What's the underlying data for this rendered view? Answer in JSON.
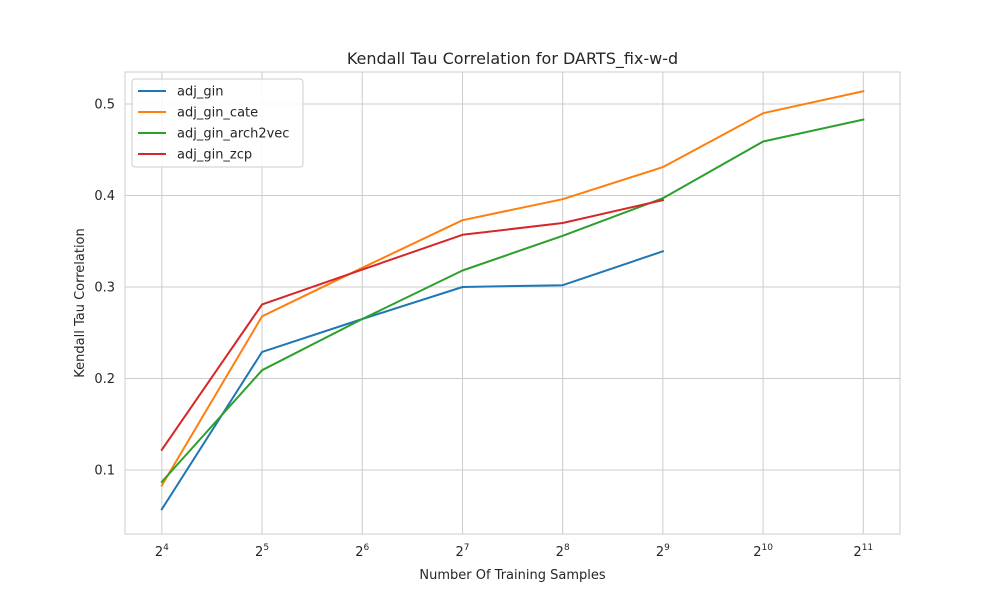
{
  "chart_data": {
    "type": "line",
    "title": "Kendall Tau Correlation for DARTS_fix-w-d",
    "xlabel": "Number Of Training Samples",
    "ylabel": "Kendall Tau Correlation",
    "x_scale": "log2",
    "x_ticks": [
      {
        "base": "2",
        "exp": "4",
        "value": 16
      },
      {
        "base": "2",
        "exp": "5",
        "value": 32
      },
      {
        "base": "2",
        "exp": "6",
        "value": 64
      },
      {
        "base": "2",
        "exp": "7",
        "value": 128
      },
      {
        "base": "2",
        "exp": "8",
        "value": 256
      },
      {
        "base": "2",
        "exp": "9",
        "value": 512
      },
      {
        "base": "2",
        "exp": "10",
        "value": 1024
      },
      {
        "base": "2",
        "exp": "11",
        "value": 2048
      }
    ],
    "xlim": [
      12.4,
      2640
    ],
    "ylim": [
      0.03,
      0.535
    ],
    "y_ticks": [
      {
        "label": "0.1",
        "value": 0.1
      },
      {
        "label": "0.2",
        "value": 0.2
      },
      {
        "label": "0.3",
        "value": 0.3
      },
      {
        "label": "0.4",
        "value": 0.4
      },
      {
        "label": "0.5",
        "value": 0.5
      }
    ],
    "grid": true,
    "legend_position": "top-left",
    "series": [
      {
        "name": "adj_gin",
        "color": "#1f77b4",
        "x": [
          16,
          32,
          64,
          128,
          256,
          512
        ],
        "y": [
          0.057,
          0.229,
          0.265,
          0.3,
          0.302,
          0.339
        ]
      },
      {
        "name": "adj_gin_cate",
        "color": "#ff7f0e",
        "x": [
          16,
          32,
          64,
          128,
          256,
          512,
          1024,
          2048
        ],
        "y": [
          0.083,
          0.268,
          0.321,
          0.373,
          0.396,
          0.431,
          0.49,
          0.514
        ]
      },
      {
        "name": "adj_gin_arch2vec",
        "color": "#2ca02c",
        "x": [
          16,
          32,
          64,
          128,
          256,
          512,
          1024,
          2048
        ],
        "y": [
          0.087,
          0.209,
          0.265,
          0.318,
          0.356,
          0.397,
          0.459,
          0.483
        ]
      },
      {
        "name": "adj_gin_zcp",
        "color": "#d62728",
        "x": [
          16,
          32,
          64,
          128,
          256,
          512
        ],
        "y": [
          0.122,
          0.281,
          0.319,
          0.357,
          0.37,
          0.395
        ]
      }
    ]
  }
}
